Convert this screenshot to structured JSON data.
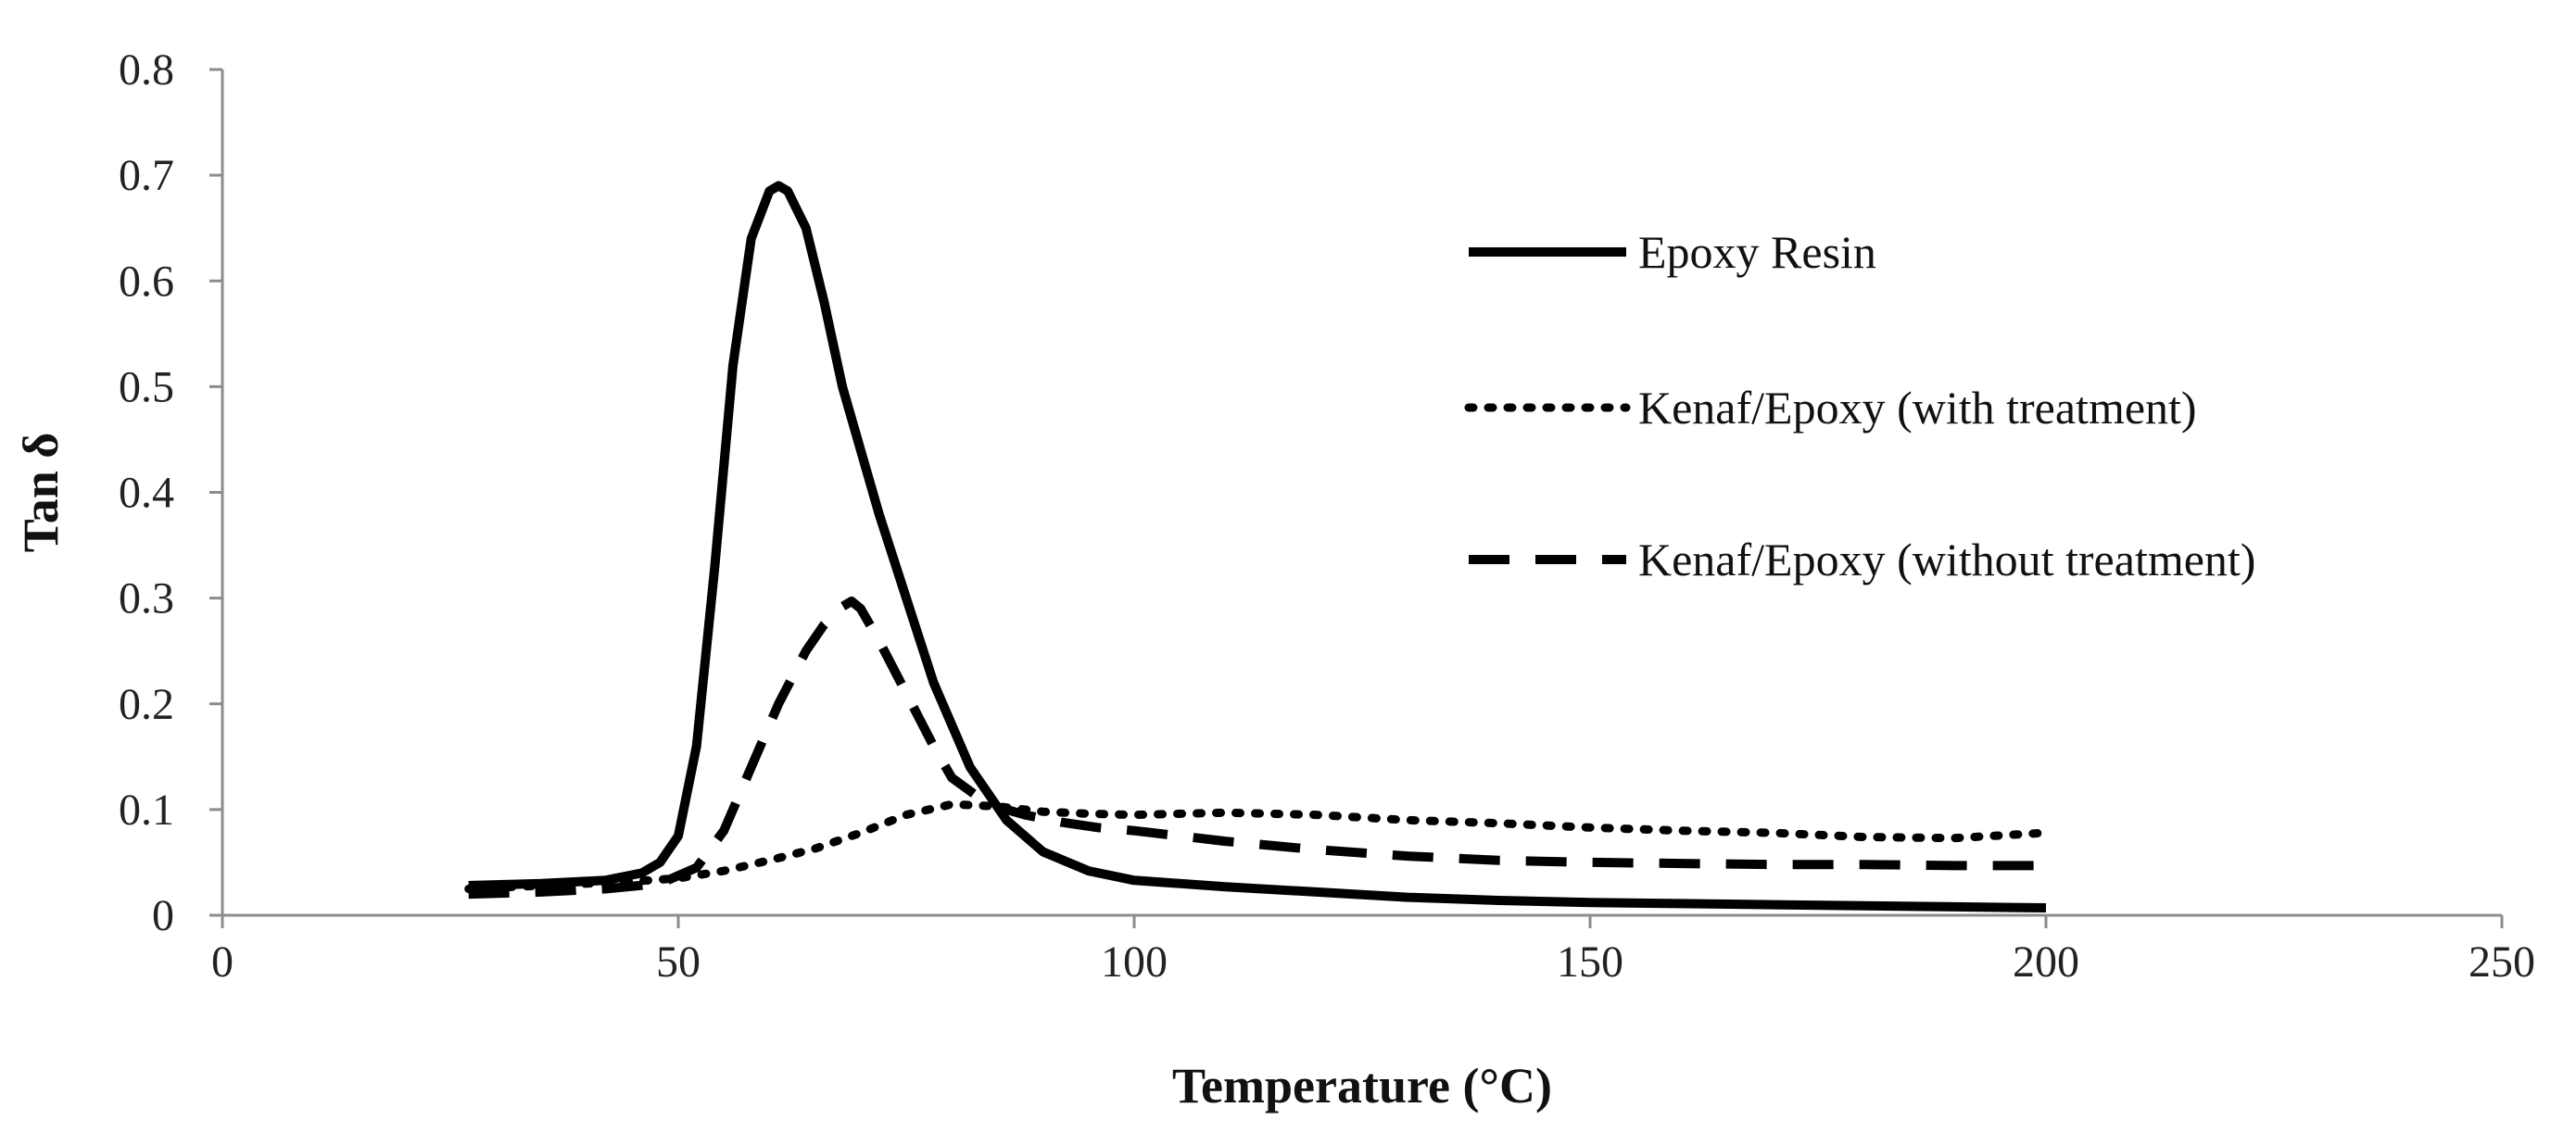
{
  "chart_data": {
    "type": "line",
    "title": "",
    "xlabel": "Temperature (°C)",
    "ylabel": "Tan δ",
    "xlim": [
      0,
      250
    ],
    "ylim": [
      0,
      0.8
    ],
    "xticks": [
      0,
      50,
      100,
      150,
      200,
      250
    ],
    "yticks": [
      0,
      0.1,
      0.2,
      0.3,
      0.4,
      0.5,
      0.6,
      0.7,
      0.8
    ],
    "xtick_labels": [
      "0",
      "50",
      "100",
      "150",
      "200",
      "250"
    ],
    "ytick_labels": [
      "0",
      "0.1",
      "0.2",
      "0.3",
      "0.4",
      "0.5",
      "0.6",
      "0.7",
      "0.8"
    ],
    "grid": false,
    "legend_position": "top-right",
    "series": [
      {
        "name": "Epoxy Resin",
        "style": "solid",
        "color": "#000000",
        "x": [
          27,
          35,
          42,
          46,
          48,
          50,
          52,
          54,
          56,
          58,
          60,
          61,
          62,
          64,
          66,
          68,
          70,
          72,
          75,
          78,
          82,
          86,
          90,
          95,
          100,
          110,
          120,
          130,
          140,
          150,
          160,
          170,
          180,
          190,
          200
        ],
        "y": [
          0.028,
          0.03,
          0.033,
          0.04,
          0.05,
          0.075,
          0.16,
          0.33,
          0.52,
          0.64,
          0.685,
          0.69,
          0.685,
          0.65,
          0.58,
          0.5,
          0.44,
          0.38,
          0.3,
          0.22,
          0.14,
          0.09,
          0.06,
          0.042,
          0.033,
          0.027,
          0.022,
          0.017,
          0.014,
          0.012,
          0.011,
          0.01,
          0.009,
          0.008,
          0.007
        ]
      },
      {
        "name": "Kenaf/Epoxy (with treatment)",
        "style": "dotted",
        "color": "#000000",
        "x": [
          27,
          35,
          40,
          45,
          50,
          55,
          60,
          65,
          70,
          75,
          80,
          85,
          90,
          95,
          100,
          110,
          120,
          130,
          140,
          150,
          160,
          170,
          180,
          190,
          200
        ],
        "y": [
          0.025,
          0.028,
          0.03,
          0.032,
          0.035,
          0.042,
          0.052,
          0.063,
          0.078,
          0.095,
          0.105,
          0.103,
          0.098,
          0.096,
          0.095,
          0.097,
          0.095,
          0.09,
          0.087,
          0.083,
          0.08,
          0.078,
          0.074,
          0.073,
          0.078
        ]
      },
      {
        "name": "Kenaf/Epoxy (without treatment)",
        "style": "dashed",
        "color": "#000000",
        "x": [
          27,
          35,
          42,
          48,
          52,
          55,
          58,
          61,
          64,
          66,
          68,
          69,
          70,
          72,
          75,
          78,
          80,
          84,
          88,
          92,
          96,
          100,
          110,
          120,
          130,
          140,
          150,
          160,
          170,
          180,
          190,
          200
        ],
        "y": [
          0.02,
          0.022,
          0.025,
          0.03,
          0.045,
          0.08,
          0.14,
          0.2,
          0.25,
          0.275,
          0.292,
          0.297,
          0.29,
          0.26,
          0.21,
          0.16,
          0.13,
          0.105,
          0.095,
          0.088,
          0.083,
          0.08,
          0.07,
          0.062,
          0.056,
          0.052,
          0.05,
          0.049,
          0.048,
          0.048,
          0.047,
          0.047
        ]
      }
    ]
  }
}
